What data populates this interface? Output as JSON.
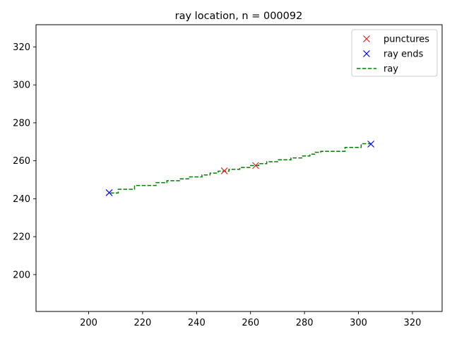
{
  "chart_data": {
    "type": "line",
    "title": "ray location, n = 000092",
    "xlabel": "",
    "ylabel": "",
    "xlim": [
      180.5,
      331
    ],
    "ylim": [
      180.6,
      331.7
    ],
    "xticks": [
      200,
      220,
      240,
      260,
      280,
      300,
      320
    ],
    "yticks": [
      200,
      220,
      240,
      260,
      280,
      300,
      320
    ],
    "grid": false,
    "legend_position": "top-right",
    "legend": [
      "punctures",
      "ray ends",
      "ray"
    ],
    "series": [
      {
        "name": "punctures",
        "marker": "x",
        "color": "#d62728",
        "points": [
          [
            250.3,
            254.7
          ],
          [
            261.9,
            257.5
          ]
        ]
      },
      {
        "name": "ray ends",
        "marker": "x",
        "color": "#0000ff",
        "points": [
          [
            207.6,
            243.2
          ],
          [
            304.6,
            268.8
          ]
        ]
      },
      {
        "name": "ray",
        "style": "dashed",
        "color": "#008000",
        "points": [
          [
            208,
            243
          ],
          [
            211,
            243
          ],
          [
            211,
            245
          ],
          [
            217,
            245
          ],
          [
            217,
            247
          ],
          [
            225,
            247
          ],
          [
            225,
            248.5
          ],
          [
            229,
            248.5
          ],
          [
            229,
            249.5
          ],
          [
            234,
            249.5
          ],
          [
            234,
            250.5
          ],
          [
            237,
            250.5
          ],
          [
            237,
            251.5
          ],
          [
            242,
            251.5
          ],
          [
            242,
            252.5
          ],
          [
            245,
            252.5
          ],
          [
            245,
            253.5
          ],
          [
            248,
            253.5
          ],
          [
            248,
            254.5
          ],
          [
            252,
            254.5
          ],
          [
            252,
            255.5
          ],
          [
            256,
            255.5
          ],
          [
            256,
            256.5
          ],
          [
            260,
            256.5
          ],
          [
            260,
            257.5
          ],
          [
            263,
            257.5
          ],
          [
            263,
            258.5
          ],
          [
            266,
            258.5
          ],
          [
            266,
            259.5
          ],
          [
            270,
            259.5
          ],
          [
            270,
            260.5
          ],
          [
            275,
            260.5
          ],
          [
            275,
            261.5
          ],
          [
            279,
            261.5
          ],
          [
            279,
            262.5
          ],
          [
            282,
            262.5
          ],
          [
            282,
            263.5
          ],
          [
            284,
            263.5
          ],
          [
            284,
            264.5
          ],
          [
            286,
            264.5
          ],
          [
            286,
            265
          ],
          [
            295,
            265
          ],
          [
            295,
            267
          ],
          [
            301,
            267
          ],
          [
            301,
            269
          ],
          [
            304.6,
            269
          ]
        ]
      }
    ]
  }
}
